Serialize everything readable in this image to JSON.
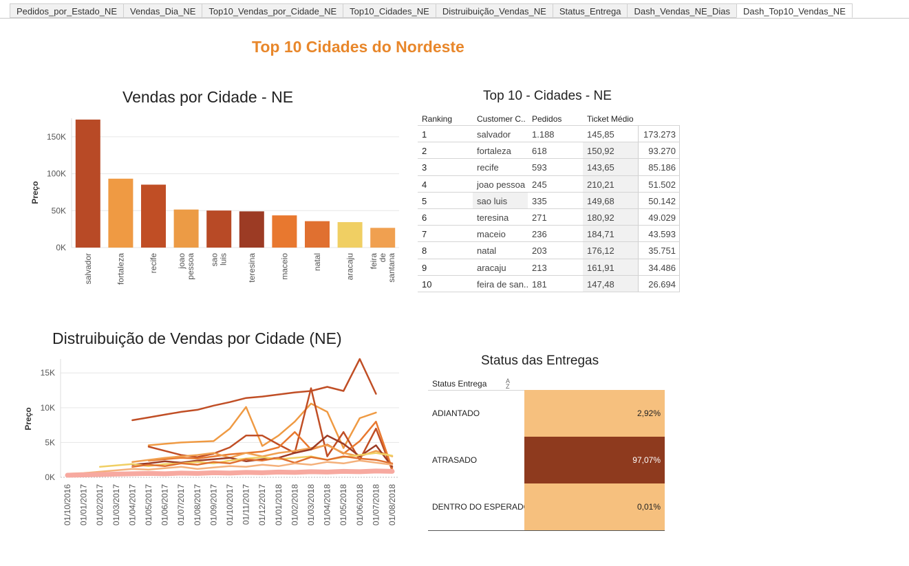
{
  "tabs": [
    "Pedidos_por_Estado_NE",
    "Vendas_Dia_NE",
    "Top10_Vendas_por_Cidade_NE",
    "Top10_Cidades_NE",
    "Distruibuição_Vendas_NE",
    "Status_Entrega",
    "Dash_Vendas_NE_Dias",
    "Dash_Top10_Vendas_NE"
  ],
  "active_tab": "Dash_Top10_Vendas_NE",
  "dashboard_title": "Top 10 Cidades do Nordeste",
  "chart_data": [
    {
      "type": "bar",
      "title": "Vendas por Cidade - NE",
      "xlabel": "",
      "ylabel": "Preço",
      "ylim": [
        0,
        175000
      ],
      "yticks": [
        "0K",
        "50K",
        "100K",
        "150K"
      ],
      "categories": [
        "salvador",
        "fortaleza",
        "recife",
        "joao pessoa",
        "sao luis",
        "teresina",
        "maceio",
        "natal",
        "aracaju",
        "feira de santana"
      ],
      "values": [
        173273,
        93270,
        85186,
        51502,
        50142,
        49029,
        43593,
        35751,
        34486,
        26694
      ],
      "colors": [
        "#b84a26",
        "#ef9a43",
        "#c04e25",
        "#ec9b45",
        "#b84a26",
        "#9c3b24",
        "#e8782f",
        "#e07030",
        "#f0cf63",
        "#f0a050"
      ],
      "grid": true
    },
    {
      "type": "line",
      "title": "Distruibuição de Vendas por Cidade (NE)",
      "xlabel": "",
      "ylabel": "Preço",
      "ylim": [
        0,
        17000
      ],
      "yticks": [
        "0K",
        "5K",
        "10K",
        "15K"
      ],
      "categories": [
        "01/10/2016",
        "01/01/2017",
        "01/02/2017",
        "01/03/2017",
        "01/04/2017",
        "01/05/2017",
        "01/06/2017",
        "01/07/2017",
        "01/08/2017",
        "01/09/2017",
        "01/10/2017",
        "01/11/2017",
        "01/12/2017",
        "01/01/2018",
        "01/02/2018",
        "01/03/2018",
        "01/04/2018",
        "01/05/2018",
        "01/06/2018",
        "01/07/2018",
        "01/08/2018"
      ],
      "series": [
        {
          "color": "#c04e25",
          "values": [
            null,
            null,
            null,
            null,
            8200,
            8600,
            9000,
            9400,
            9700,
            10300,
            10800,
            11400,
            11600,
            11900,
            12200,
            12400,
            13000,
            12400,
            17000,
            12000,
            null
          ]
        },
        {
          "color": "#ef9a43",
          "values": [
            null,
            null,
            null,
            null,
            null,
            4600,
            4800,
            5000,
            5100,
            5200,
            7000,
            10100,
            4500,
            6000,
            8000,
            10600,
            9400,
            4200,
            8500,
            9300,
            null
          ]
        },
        {
          "color": "#c04e25",
          "values": [
            null,
            null,
            null,
            null,
            null,
            4400,
            3800,
            3200,
            2900,
            3400,
            4300,
            6000,
            6000,
            4700,
            3500,
            12800,
            3000,
            6500,
            2500,
            7000,
            1000
          ]
        },
        {
          "color": "#e8782f",
          "values": [
            null,
            null,
            null,
            null,
            null,
            2400,
            2600,
            2800,
            2700,
            3000,
            3300,
            3500,
            3700,
            4300,
            6500,
            4000,
            4700,
            3400,
            5200,
            8000,
            1200
          ]
        },
        {
          "color": "#f0a050",
          "values": [
            null,
            null,
            null,
            null,
            2200,
            2500,
            2800,
            3000,
            3200,
            3500,
            2800,
            3500,
            3000,
            3500,
            3800,
            4200,
            4600,
            3500,
            3000,
            3800,
            3000
          ]
        },
        {
          "color": "#9c3b24",
          "values": [
            null,
            null,
            null,
            null,
            1800,
            2000,
            2300,
            2100,
            2400,
            2600,
            2800,
            2300,
            2600,
            2800,
            3500,
            4000,
            6000,
            4800,
            3000,
            4600,
            1500
          ]
        },
        {
          "color": "#f0cf63",
          "values": [
            null,
            null,
            1500,
            1700,
            1900,
            1600,
            1900,
            2000,
            2200,
            2000,
            2400,
            2700,
            2900,
            2600,
            2800,
            3000,
            2500,
            2900,
            3200,
            3500,
            3100
          ]
        },
        {
          "color": "#e07030",
          "values": [
            null,
            null,
            null,
            null,
            1500,
            1800,
            1600,
            2000,
            1800,
            2200,
            2000,
            2600,
            2400,
            2800,
            2100,
            2900,
            2500,
            3000,
            2700,
            2500,
            2000
          ]
        },
        {
          "color": "#f4b07a",
          "values": [
            500,
            600,
            800,
            1000,
            1200,
            1100,
            1300,
            1500,
            1200,
            1400,
            1600,
            1500,
            1800,
            1600,
            2000,
            1800,
            2200,
            2000,
            2400,
            2100,
            1800
          ]
        },
        {
          "color": "#f7a9a0",
          "values": [
            300,
            350,
            400,
            450,
            500,
            550,
            500,
            600,
            550,
            650,
            600,
            700,
            650,
            750,
            700,
            800,
            750,
            850,
            800,
            900,
            850
          ]
        }
      ],
      "grid": true
    }
  ],
  "top10_table": {
    "title": "Top 10 - Cidades - NE",
    "headers": {
      "ranking": "Ranking",
      "city": "Customer C..",
      "orders": "Pedidos",
      "ticket": "Ticket Médio",
      "total": ""
    },
    "rows": [
      {
        "rank": "1",
        "city": "salvador",
        "orders": "1.188",
        "ticket": "145,85",
        "total": "173.273"
      },
      {
        "rank": "2",
        "city": "fortaleza",
        "orders": "618",
        "ticket": "150,92",
        "total": "93.270"
      },
      {
        "rank": "3",
        "city": "recife",
        "orders": "593",
        "ticket": "143,65",
        "total": "85.186"
      },
      {
        "rank": "4",
        "city": "joao pessoa",
        "orders": "245",
        "ticket": "210,21",
        "total": "51.502"
      },
      {
        "rank": "5",
        "city": "sao luis",
        "orders": "335",
        "ticket": "149,68",
        "total": "50.142"
      },
      {
        "rank": "6",
        "city": "teresina",
        "orders": "271",
        "ticket": "180,92",
        "total": "49.029"
      },
      {
        "rank": "7",
        "city": "maceio",
        "orders": "236",
        "ticket": "184,71",
        "total": "43.593"
      },
      {
        "rank": "8",
        "city": "natal",
        "orders": "203",
        "ticket": "176,12",
        "total": "35.751"
      },
      {
        "rank": "9",
        "city": "aracaju",
        "orders": "213",
        "ticket": "161,91",
        "total": "34.486"
      },
      {
        "rank": "10",
        "city": "feira de san..",
        "orders": "181",
        "ticket": "147,48",
        "total": "26.694"
      }
    ]
  },
  "status": {
    "title": "Status das Entregas",
    "header": "Status Entrega",
    "rows": [
      {
        "label": "ADIANTADO",
        "value": 2.92,
        "pct": "2,92%",
        "color": "#f6c07e",
        "text_color": "#222222"
      },
      {
        "label": "ATRASADO",
        "value": 97.07,
        "pct": "97,07%",
        "color": "#8e3a1e",
        "text_color": "#ffffff"
      },
      {
        "label": "DENTRO DO ESPERADO",
        "value": 0.01,
        "pct": "0,01%",
        "color": "#f6c07e",
        "text_color": "#222222"
      }
    ]
  }
}
